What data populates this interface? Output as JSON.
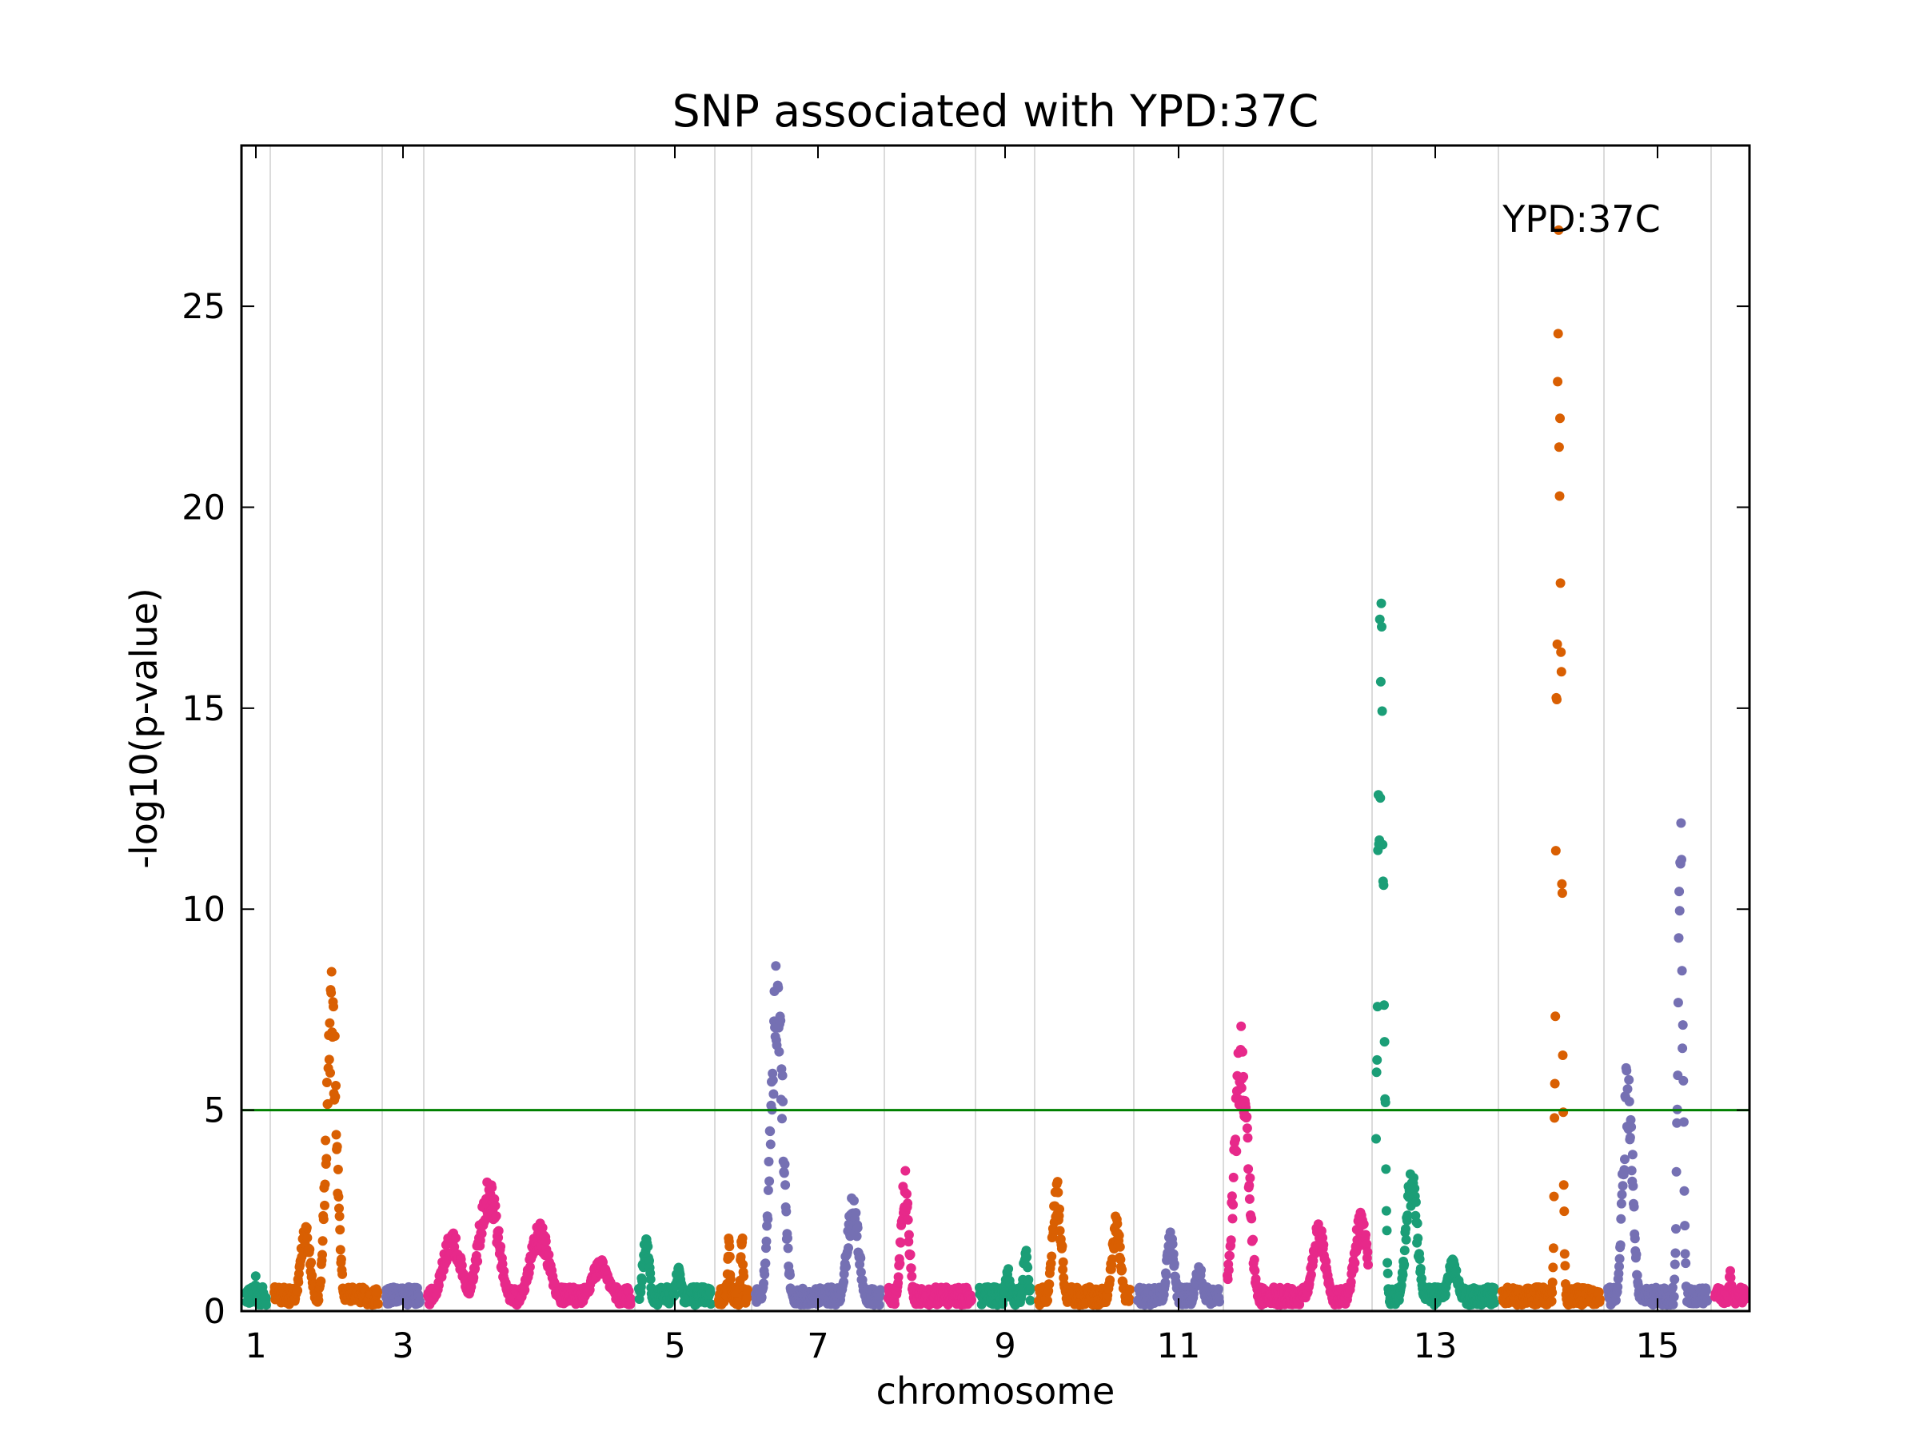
{
  "chart_data": {
    "type": "scatter",
    "title": "SNP associated with YPD:37C",
    "xlabel": "chromosome",
    "ylabel": "-log10(p-value)",
    "annotation": "YPD:37C",
    "ylim": [
      0,
      29
    ],
    "yticks": [
      0,
      5,
      10,
      15,
      20,
      25
    ],
    "xticks": [
      {
        "chrom": 1,
        "label": "1"
      },
      {
        "chrom": 3,
        "label": "3"
      },
      {
        "chrom": 5,
        "label": "5"
      },
      {
        "chrom": 7,
        "label": "7"
      },
      {
        "chrom": 9,
        "label": "9"
      },
      {
        "chrom": 11,
        "label": "11"
      },
      {
        "chrom": 13,
        "label": "13"
      },
      {
        "chrom": 15,
        "label": "15"
      }
    ],
    "threshold": {
      "y": 5,
      "color": "#008000"
    },
    "grid": "vertical chromosome boundaries",
    "palette": [
      "#1b9e77",
      "#d95f02",
      "#7570b3",
      "#e7298a"
    ],
    "chromosomes": [
      {
        "chrom": 1,
        "peaks": [
          {
            "x": 0.5,
            "y": 0.9
          }
        ]
      },
      {
        "chrom": 2,
        "peaks": [
          {
            "x": 0.55,
            "y": 8.6
          },
          {
            "x": 0.3,
            "y": 2.3
          }
        ]
      },
      {
        "chrom": 3,
        "peaks": [
          {
            "x": 0.5,
            "y": 0.6
          }
        ]
      },
      {
        "chrom": 4,
        "peaks": [
          {
            "x": 0.3,
            "y": 3.3
          },
          {
            "x": 0.12,
            "y": 2.0
          },
          {
            "x": 0.55,
            "y": 2.2
          },
          {
            "x": 0.85,
            "y": 1.3
          }
        ]
      },
      {
        "chrom": 5,
        "peaks": [
          {
            "x": 0.1,
            "y": 1.9
          },
          {
            "x": 0.55,
            "y": 1.1
          }
        ]
      },
      {
        "chrom": 6,
        "peaks": [
          {
            "x": 0.35,
            "y": 1.9
          },
          {
            "x": 0.8,
            "y": 2.1
          }
        ]
      },
      {
        "chrom": 7,
        "peaks": [
          {
            "x": 0.17,
            "y": 8.9
          },
          {
            "x": 0.78,
            "y": 2.9
          }
        ]
      },
      {
        "chrom": 8,
        "peaks": [
          {
            "x": 0.2,
            "y": 3.6
          }
        ]
      },
      {
        "chrom": 9,
        "peaks": [
          {
            "x": 0.55,
            "y": 1.1
          },
          {
            "x": 0.9,
            "y": 1.6
          }
        ]
      },
      {
        "chrom": 10,
        "peaks": [
          {
            "x": 0.2,
            "y": 3.3
          },
          {
            "x": 0.85,
            "y": 2.4
          }
        ]
      },
      {
        "chrom": 11,
        "peaks": [
          {
            "x": 0.4,
            "y": 2.0
          },
          {
            "x": 0.75,
            "y": 1.2
          }
        ]
      },
      {
        "chrom": 12,
        "peaks": [
          {
            "x": 0.1,
            "y": 7.3
          },
          {
            "x": 0.65,
            "y": 2.2
          },
          {
            "x": 0.95,
            "y": 2.5
          }
        ]
      },
      {
        "chrom": 13,
        "peaks": [
          {
            "x": 0.04,
            "y": 18.5
          },
          {
            "x": 0.3,
            "y": 3.6
          },
          {
            "x": 0.65,
            "y": 1.3
          }
        ]
      },
      {
        "chrom": 14,
        "peaks": [
          {
            "x": 0.58,
            "y": 28.7
          }
        ]
      },
      {
        "chrom": 15,
        "peaks": [
          {
            "x": 0.2,
            "y": 6.5
          },
          {
            "x": 0.73,
            "y": 13.2
          }
        ]
      },
      {
        "chrom": 16,
        "peaks": [
          {
            "x": 0.5,
            "y": 1.0
          }
        ]
      }
    ]
  }
}
